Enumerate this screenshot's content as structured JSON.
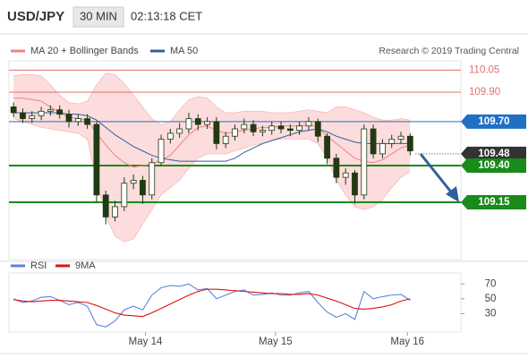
{
  "header": {
    "symbol": "USD/JPY",
    "interval": "30 MIN",
    "time": "02:13:18 CET"
  },
  "credit": "Research © 2019 Trading Central",
  "chart_data": [
    {
      "type": "candlestick",
      "x": [
        0,
        1,
        2,
        3,
        4,
        5,
        6,
        7,
        8,
        9,
        10,
        11,
        12,
        13,
        14,
        15,
        16,
        17,
        18,
        19,
        20,
        21,
        22,
        23,
        24,
        25,
        26,
        27,
        28,
        29,
        30,
        31,
        32,
        33,
        34,
        35,
        36,
        37,
        38,
        39,
        40,
        41,
        42,
        43
      ],
      "open": [
        109.8,
        109.76,
        109.72,
        109.74,
        109.77,
        109.78,
        109.75,
        109.7,
        109.72,
        109.68,
        109.2,
        109.05,
        109.12,
        109.28,
        109.3,
        109.2,
        109.42,
        109.58,
        109.62,
        109.65,
        109.72,
        109.68,
        109.7,
        109.55,
        109.6,
        109.65,
        109.68,
        109.63,
        109.64,
        109.67,
        109.65,
        109.64,
        109.67,
        109.7,
        109.6,
        109.45,
        109.32,
        109.35,
        109.2,
        109.65,
        109.48,
        109.55,
        109.58,
        109.6
      ],
      "high": [
        109.83,
        109.79,
        109.77,
        109.8,
        109.81,
        109.81,
        109.78,
        109.75,
        109.75,
        109.7,
        109.23,
        109.16,
        109.32,
        109.34,
        109.33,
        109.45,
        109.61,
        109.65,
        109.69,
        109.76,
        109.75,
        109.73,
        109.73,
        109.63,
        109.68,
        109.72,
        109.71,
        109.67,
        109.7,
        109.7,
        109.68,
        109.7,
        109.73,
        109.72,
        109.62,
        109.48,
        109.38,
        109.37,
        109.68,
        109.68,
        109.58,
        109.61,
        109.63,
        109.62
      ],
      "low": [
        109.73,
        109.69,
        109.69,
        109.71,
        109.74,
        109.72,
        109.66,
        109.67,
        109.65,
        109.15,
        109.0,
        109.02,
        109.09,
        109.24,
        109.14,
        109.17,
        109.4,
        109.55,
        109.59,
        109.62,
        109.64,
        109.65,
        109.51,
        109.52,
        109.57,
        109.62,
        109.6,
        109.6,
        109.61,
        109.62,
        109.6,
        109.61,
        109.64,
        109.56,
        109.41,
        109.28,
        109.27,
        109.14,
        109.17,
        109.45,
        109.45,
        109.52,
        109.55,
        109.47
      ],
      "close": [
        109.76,
        109.72,
        109.74,
        109.77,
        109.78,
        109.75,
        109.7,
        109.72,
        109.68,
        109.2,
        109.05,
        109.12,
        109.28,
        109.3,
        109.2,
        109.42,
        109.58,
        109.62,
        109.65,
        109.72,
        109.68,
        109.7,
        109.55,
        109.6,
        109.65,
        109.68,
        109.63,
        109.64,
        109.67,
        109.65,
        109.64,
        109.67,
        109.7,
        109.6,
        109.45,
        109.32,
        109.35,
        109.2,
        109.65,
        109.48,
        109.55,
        109.58,
        109.6,
        109.5
      ],
      "up_color": "#ffffff",
      "down_color": "#203a14",
      "edge_color": "#203a14",
      "series": [
        {
          "name": "MA 20 + Bollinger Bands",
          "color": "#f08080",
          "band_color": "#fbd3d3",
          "values": [
            109.86,
            109.86,
            109.85,
            109.84,
            109.8,
            109.76,
            109.73,
            109.72,
            109.71,
            109.62,
            109.54,
            109.47,
            109.42,
            109.39,
            109.4,
            109.41,
            109.44,
            109.47,
            109.54,
            109.61,
            109.66,
            109.67,
            109.64,
            109.62,
            109.63,
            109.64,
            109.65,
            109.66,
            109.66,
            109.67,
            109.67,
            109.67,
            109.68,
            109.66,
            109.6,
            109.55,
            109.5,
            109.45,
            109.43,
            109.42,
            109.44,
            109.48,
            109.52,
            109.54
          ],
          "upper": [
            110.01,
            110.02,
            110.02,
            110.01,
            109.95,
            109.88,
            109.83,
            109.82,
            109.84,
            109.95,
            110.03,
            110.02,
            109.96,
            109.88,
            109.8,
            109.72,
            109.68,
            109.7,
            109.78,
            109.85,
            109.87,
            109.86,
            109.8,
            109.76,
            109.76,
            109.77,
            109.77,
            109.77,
            109.76,
            109.76,
            109.76,
            109.77,
            109.78,
            109.77,
            109.76,
            109.8,
            109.8,
            109.78,
            109.76,
            109.73,
            109.71,
            109.71,
            109.72,
            109.71
          ],
          "lower": [
            109.72,
            109.7,
            109.68,
            109.66,
            109.65,
            109.64,
            109.63,
            109.62,
            109.58,
            109.3,
            109.05,
            108.92,
            108.88,
            108.9,
            109.0,
            109.1,
            109.2,
            109.25,
            109.3,
            109.38,
            109.45,
            109.48,
            109.48,
            109.48,
            109.5,
            109.52,
            109.54,
            109.55,
            109.57,
            109.58,
            109.58,
            109.58,
            109.58,
            109.55,
            109.45,
            109.3,
            109.2,
            109.12,
            109.1,
            109.12,
            109.17,
            109.25,
            109.32,
            109.36
          ]
        },
        {
          "name": "MA 50",
          "color": "#2f5f9e",
          "values": [
            109.76,
            109.76,
            109.76,
            109.76,
            109.76,
            109.76,
            109.75,
            109.75,
            109.74,
            109.71,
            109.66,
            109.61,
            109.57,
            109.53,
            109.5,
            109.47,
            109.45,
            109.44,
            109.43,
            109.43,
            109.43,
            109.43,
            109.43,
            109.43,
            109.45,
            109.49,
            109.52,
            109.55,
            109.57,
            109.59,
            109.61,
            109.63,
            109.64,
            109.65,
            109.63,
            109.6,
            109.58,
            109.56,
            109.55,
            109.55,
            109.55,
            109.55,
            109.55,
            109.55
          ]
        }
      ],
      "levels": [
        {
          "value": 110.05,
          "label": "110.05",
          "color": "#e07070",
          "box": false,
          "dashed": false
        },
        {
          "value": 109.9,
          "label": "109.90",
          "color": "#e07070",
          "box": false,
          "dashed": false
        },
        {
          "value": 109.7,
          "label": "109.70",
          "color": "#1f6fc5",
          "box": true,
          "dashed": false
        },
        {
          "value": 109.48,
          "label": "109.48",
          "color": "#333333",
          "box": true,
          "dashed": true
        },
        {
          "value": 109.4,
          "label": "109.40",
          "color": "#1a8a1a",
          "box": true,
          "dashed": false
        },
        {
          "value": 109.15,
          "label": "109.15",
          "color": "#1a8a1a",
          "box": true,
          "dashed": false
        }
      ],
      "xlim": [
        -0.5,
        48.5
      ],
      "ylim": [
        108.76,
        110.15
      ]
    },
    {
      "type": "line",
      "x": [
        0,
        1,
        2,
        3,
        4,
        5,
        6,
        7,
        8,
        9,
        10,
        11,
        12,
        13,
        14,
        15,
        16,
        17,
        18,
        19,
        20,
        21,
        22,
        23,
        24,
        25,
        26,
        27,
        28,
        29,
        30,
        31,
        32,
        33,
        34,
        35,
        36,
        37,
        38,
        39,
        40,
        41,
        42,
        43
      ],
      "series": [
        {
          "name": "RSI",
          "color": "#5b84d8",
          "values": [
            50,
            45,
            47,
            52,
            53,
            48,
            42,
            45,
            40,
            15,
            12,
            20,
            35,
            40,
            35,
            55,
            65,
            68,
            67,
            70,
            62,
            64,
            50,
            55,
            60,
            62,
            55,
            56,
            58,
            55,
            55,
            58,
            60,
            45,
            32,
            25,
            30,
            22,
            60,
            50,
            53,
            55,
            56,
            48
          ]
        },
        {
          "name": "9MA",
          "color": "#e01010",
          "values": [
            49,
            47,
            46,
            47,
            48,
            48,
            47,
            46,
            45,
            41,
            36,
            31,
            28,
            27,
            26,
            31,
            37,
            43,
            49,
            55,
            60,
            63,
            63,
            62,
            61,
            60,
            59,
            58,
            57,
            57,
            56,
            56,
            57,
            55,
            51,
            47,
            42,
            37,
            36,
            37,
            39,
            42,
            47,
            50
          ]
        }
      ],
      "xlim": [
        -0.5,
        48.5
      ],
      "ylim": [
        5,
        85
      ],
      "yticks": [
        30,
        50,
        70
      ],
      "xticks": [
        {
          "value": 14.3,
          "label": "May 14"
        },
        {
          "value": 28.4,
          "label": "May 15"
        },
        {
          "value": 42.7,
          "label": "May 16"
        }
      ]
    }
  ]
}
